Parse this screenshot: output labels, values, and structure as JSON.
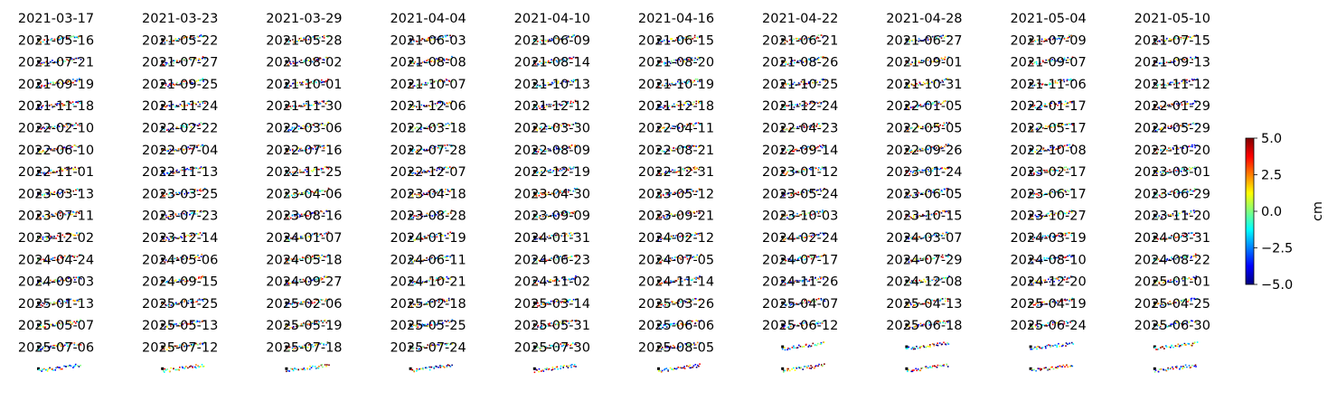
{
  "chart_data": {
    "type": "heatmap",
    "layout": "small-multiples",
    "columns": 10,
    "panels": [
      "2021-03-17",
      "2021-03-23",
      "2021-03-29",
      "2021-04-04",
      "2021-04-10",
      "2021-04-16",
      "2021-04-22",
      "2021-04-28",
      "2021-05-04",
      "2021-05-10",
      "2021-05-16",
      "2021-05-22",
      "2021-05-28",
      "2021-06-03",
      "2021-06-09",
      "2021-06-15",
      "2021-06-21",
      "2021-06-27",
      "2021-07-09",
      "2021-07-15",
      "2021-07-21",
      "2021-07-27",
      "2021-08-02",
      "2021-08-08",
      "2021-08-14",
      "2021-08-20",
      "2021-08-26",
      "2021-09-01",
      "2021-09-07",
      "2021-09-13",
      "2021-09-19",
      "2021-09-25",
      "2021-10-01",
      "2021-10-07",
      "2021-10-13",
      "2021-10-19",
      "2021-10-25",
      "2021-10-31",
      "2021-11-06",
      "2021-11-12",
      "2021-11-18",
      "2021-11-24",
      "2021-11-30",
      "2021-12-06",
      "2021-12-12",
      "2021-12-18",
      "2021-12-24",
      "2022-01-05",
      "2022-01-17",
      "2022-01-29",
      "2022-02-10",
      "2022-02-22",
      "2022-03-06",
      "2022-03-18",
      "2022-03-30",
      "2022-04-11",
      "2022-04-23",
      "2022-05-05",
      "2022-05-17",
      "2022-05-29",
      "2022-06-10",
      "2022-07-04",
      "2022-07-16",
      "2022-07-28",
      "2022-08-09",
      "2022-08-21",
      "2022-09-14",
      "2022-09-26",
      "2022-10-08",
      "2022-10-20",
      "2022-11-01",
      "2022-11-13",
      "2022-11-25",
      "2022-12-07",
      "2022-12-19",
      "2022-12-31",
      "2023-01-12",
      "2023-01-24",
      "2023-02-17",
      "2023-03-01",
      "2023-03-13",
      "2023-03-25",
      "2023-04-06",
      "2023-04-18",
      "2023-04-30",
      "2023-05-12",
      "2023-05-24",
      "2023-06-05",
      "2023-06-17",
      "2023-06-29",
      "2023-07-11",
      "2023-07-23",
      "2023-08-16",
      "2023-08-28",
      "2023-09-09",
      "2023-09-21",
      "2023-10-03",
      "2023-10-15",
      "2023-10-27",
      "2023-11-20",
      "2023-12-02",
      "2023-12-14",
      "2024-01-07",
      "2024-01-19",
      "2024-01-31",
      "2024-02-12",
      "2024-02-24",
      "2024-03-07",
      "2024-03-19",
      "2024-03-31",
      "2024-04-24",
      "2024-05-06",
      "2024-05-18",
      "2024-06-11",
      "2024-06-23",
      "2024-07-05",
      "2024-07-17",
      "2024-07-29",
      "2024-08-10",
      "2024-08-22",
      "2024-09-03",
      "2024-09-15",
      "2024-09-27",
      "2024-10-21",
      "2024-11-02",
      "2024-11-14",
      "2024-11-26",
      "2024-12-08",
      "2024-12-20",
      "2025-01-01",
      "2025-01-13",
      "2025-01-25",
      "2025-02-06",
      "2025-02-18",
      "2025-03-14",
      "2025-03-26",
      "2025-04-07",
      "2025-04-13",
      "2025-04-19",
      "2025-04-25",
      "2025-05-07",
      "2025-05-13",
      "2025-05-19",
      "2025-05-25",
      "2025-05-31",
      "2025-06-06",
      "2025-06-12",
      "2025-06-18",
      "2025-06-24",
      "2025-06-30",
      "2025-07-06",
      "2025-07-12",
      "2025-07-18",
      "2025-07-24",
      "2025-07-30",
      "2025-08-05"
    ],
    "colorbar": {
      "label": "cm",
      "range": [
        -5.0,
        5.0
      ],
      "ticks": [
        5.0,
        2.5,
        0.0,
        -2.5,
        -5.0
      ],
      "tick_labels": [
        "5.0",
        "2.5",
        "0.0",
        "−2.5",
        "−5.0"
      ],
      "colormap": "jet",
      "colors": [
        "#00007f",
        "#0000ff",
        "#007fff",
        "#00ffff",
        "#7fff7f",
        "#ffff00",
        "#ff7f00",
        "#ff0000",
        "#7f0000"
      ]
    }
  }
}
